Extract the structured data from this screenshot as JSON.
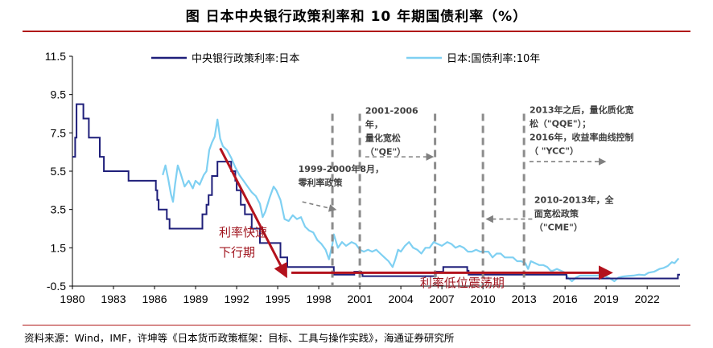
{
  "title": "图 日本中央银行政策利率和 10 年期国债利率（%）",
  "source": "资料来源：Wind，IMF，许坤等《日本货币政策框架：目标、工具与操作实践》，海通证券研究所",
  "chart_data": {
    "type": "line",
    "title": "图 日本中央银行政策利率和 10 年期国债利率（%）",
    "xlabel": "",
    "ylabel": "",
    "xlim": [
      1980,
      2024.4
    ],
    "ylim": [
      -0.5,
      11.5
    ],
    "yticks": [
      -0.5,
      1.5,
      3.5,
      5.5,
      7.5,
      9.5,
      11.5
    ],
    "xticks": [
      1980,
      1983,
      1986,
      1989,
      1992,
      1995,
      1998,
      2001,
      2004,
      2007,
      2010,
      2013,
      2016,
      2019,
      2022
    ],
    "grid": false,
    "legend_position": "top",
    "colors": {
      "policy": "#1f1f7a",
      "jgb": "#7fd0f2",
      "arrow": "#b3121d",
      "dash": "#808080"
    },
    "series": [
      {
        "name": "中央银行政策利率:日本",
        "style": "step",
        "points": [
          [
            1980.0,
            6.25
          ],
          [
            1980.2,
            7.25
          ],
          [
            1980.3,
            9.0
          ],
          [
            1980.7,
            9.0
          ],
          [
            1980.8,
            8.25
          ],
          [
            1981.1,
            8.25
          ],
          [
            1981.2,
            7.25
          ],
          [
            1981.9,
            7.25
          ],
          [
            1982.0,
            6.25
          ],
          [
            1982.2,
            6.25
          ],
          [
            1982.3,
            5.5
          ],
          [
            1983.7,
            5.5
          ],
          [
            1983.8,
            5.5
          ],
          [
            1984.0,
            5.5
          ],
          [
            1984.1,
            5.0
          ],
          [
            1986.0,
            5.0
          ],
          [
            1986.1,
            4.5
          ],
          [
            1986.2,
            4.0
          ],
          [
            1986.3,
            3.5
          ],
          [
            1986.8,
            3.5
          ],
          [
            1986.9,
            3.0
          ],
          [
            1987.1,
            2.5
          ],
          [
            1989.4,
            2.5
          ],
          [
            1989.5,
            3.25
          ],
          [
            1989.8,
            3.75
          ],
          [
            1989.95,
            4.25
          ],
          [
            1990.2,
            5.25
          ],
          [
            1990.6,
            6.0
          ],
          [
            1991.5,
            6.0
          ],
          [
            1991.6,
            5.5
          ],
          [
            1991.9,
            5.0
          ],
          [
            1992.0,
            4.5
          ],
          [
            1992.3,
            3.75
          ],
          [
            1992.6,
            3.25
          ],
          [
            1993.1,
            2.5
          ],
          [
            1993.7,
            1.75
          ],
          [
            1995.2,
            1.0
          ],
          [
            1995.7,
            0.5
          ],
          [
            1999.0,
            0.5
          ],
          [
            1999.1,
            0.1
          ],
          [
            2000.6,
            0.25
          ],
          [
            2001.1,
            0.15
          ],
          [
            2001.2,
            0.02
          ],
          [
            2006.5,
            0.02
          ],
          [
            2006.55,
            0.25
          ],
          [
            2007.1,
            0.5
          ],
          [
            2008.8,
            0.5
          ],
          [
            2008.85,
            0.3
          ],
          [
            2008.95,
            0.1
          ],
          [
            2015.95,
            0.1
          ],
          [
            2016.1,
            -0.1
          ],
          [
            2024.2,
            -0.1
          ],
          [
            2024.25,
            0.1
          ]
        ]
      },
      {
        "name": "日本:国债利率:10年",
        "style": "line",
        "points": [
          [
            1986.6,
            5.3
          ],
          [
            1986.8,
            5.8
          ],
          [
            1987.0,
            5.1
          ],
          [
            1987.2,
            4.3
          ],
          [
            1987.35,
            3.9
          ],
          [
            1987.5,
            4.8
          ],
          [
            1987.7,
            5.8
          ],
          [
            1987.9,
            5.4
          ],
          [
            1988.2,
            4.7
          ],
          [
            1988.5,
            5.0
          ],
          [
            1988.8,
            4.6
          ],
          [
            1989.0,
            5.0
          ],
          [
            1989.3,
            4.8
          ],
          [
            1989.6,
            5.3
          ],
          [
            1989.8,
            5.5
          ],
          [
            1990.0,
            6.6
          ],
          [
            1990.2,
            7.0
          ],
          [
            1990.4,
            7.3
          ],
          [
            1990.6,
            8.2
          ],
          [
            1990.8,
            7.2
          ],
          [
            1991.0,
            6.8
          ],
          [
            1991.3,
            6.6
          ],
          [
            1991.6,
            6.2
          ],
          [
            1991.9,
            5.7
          ],
          [
            1992.2,
            5.3
          ],
          [
            1992.5,
            5.0
          ],
          [
            1992.8,
            4.7
          ],
          [
            1993.1,
            4.4
          ],
          [
            1993.4,
            4.2
          ],
          [
            1993.7,
            3.8
          ],
          [
            1993.9,
            3.1
          ],
          [
            1994.1,
            3.4
          ],
          [
            1994.4,
            4.1
          ],
          [
            1994.7,
            4.7
          ],
          [
            1994.9,
            4.5
          ],
          [
            1995.2,
            4.0
          ],
          [
            1995.5,
            3.0
          ],
          [
            1995.8,
            2.9
          ],
          [
            1996.1,
            3.2
          ],
          [
            1996.4,
            3.0
          ],
          [
            1996.7,
            3.1
          ],
          [
            1997.0,
            2.6
          ],
          [
            1997.3,
            2.4
          ],
          [
            1997.6,
            2.3
          ],
          [
            1997.9,
            1.9
          ],
          [
            1998.2,
            1.7
          ],
          [
            1998.5,
            1.4
          ],
          [
            1998.75,
            0.9
          ],
          [
            1999.0,
            1.7
          ],
          [
            1999.1,
            2.2
          ],
          [
            1999.4,
            1.5
          ],
          [
            1999.7,
            1.8
          ],
          [
            2000.0,
            1.6
          ],
          [
            2000.4,
            1.8
          ],
          [
            2000.7,
            1.7
          ],
          [
            2001.0,
            1.4
          ],
          [
            2001.3,
            1.3
          ],
          [
            2001.6,
            1.4
          ],
          [
            2001.9,
            1.3
          ],
          [
            2002.2,
            1.4
          ],
          [
            2002.5,
            1.2
          ],
          [
            2002.8,
            1.0
          ],
          [
            2003.1,
            0.8
          ],
          [
            2003.4,
            0.5
          ],
          [
            2003.6,
            0.9
          ],
          [
            2003.8,
            1.4
          ],
          [
            2004.0,
            1.3
          ],
          [
            2004.3,
            1.6
          ],
          [
            2004.6,
            1.8
          ],
          [
            2004.9,
            1.5
          ],
          [
            2005.2,
            1.4
          ],
          [
            2005.5,
            1.2
          ],
          [
            2005.8,
            1.5
          ],
          [
            2006.1,
            1.5
          ],
          [
            2006.4,
            1.8
          ],
          [
            2006.7,
            1.7
          ],
          [
            2007.0,
            1.6
          ],
          [
            2007.4,
            1.8
          ],
          [
            2007.7,
            1.7
          ],
          [
            2008.0,
            1.5
          ],
          [
            2008.3,
            1.6
          ],
          [
            2008.6,
            1.5
          ],
          [
            2008.9,
            1.3
          ],
          [
            2009.2,
            1.3
          ],
          [
            2009.5,
            1.4
          ],
          [
            2009.8,
            1.3
          ],
          [
            2010.1,
            1.3
          ],
          [
            2010.4,
            1.3
          ],
          [
            2010.7,
            1.0
          ],
          [
            2011.0,
            1.2
          ],
          [
            2011.3,
            1.2
          ],
          [
            2011.6,
            1.0
          ],
          [
            2011.9,
            1.0
          ],
          [
            2012.2,
            1.0
          ],
          [
            2012.5,
            0.8
          ],
          [
            2012.8,
            0.8
          ],
          [
            2013.1,
            0.7
          ],
          [
            2013.3,
            0.4
          ],
          [
            2013.5,
            0.8
          ],
          [
            2013.8,
            0.7
          ],
          [
            2014.1,
            0.6
          ],
          [
            2014.4,
            0.6
          ],
          [
            2014.7,
            0.5
          ],
          [
            2014.95,
            0.3
          ],
          [
            2015.1,
            0.3
          ],
          [
            2015.4,
            0.4
          ],
          [
            2015.7,
            0.3
          ],
          [
            2016.0,
            0.2
          ],
          [
            2016.2,
            -0.05
          ],
          [
            2016.5,
            -0.25
          ],
          [
            2016.8,
            -0.05
          ],
          [
            2017.1,
            0.05
          ],
          [
            2017.5,
            0.05
          ],
          [
            2017.9,
            0.05
          ],
          [
            2018.3,
            0.05
          ],
          [
            2018.7,
            0.1
          ],
          [
            2019.0,
            0.0
          ],
          [
            2019.3,
            -0.1
          ],
          [
            2019.6,
            -0.25
          ],
          [
            2019.9,
            -0.05
          ],
          [
            2020.2,
            0.0
          ],
          [
            2020.6,
            0.03
          ],
          [
            2021.0,
            0.05
          ],
          [
            2021.4,
            0.1
          ],
          [
            2021.8,
            0.07
          ],
          [
            2022.1,
            0.2
          ],
          [
            2022.5,
            0.25
          ],
          [
            2022.9,
            0.4
          ],
          [
            2023.2,
            0.45
          ],
          [
            2023.5,
            0.55
          ],
          [
            2023.8,
            0.75
          ],
          [
            2024.0,
            0.7
          ],
          [
            2024.3,
            0.95
          ]
        ]
      }
    ],
    "annotations": [
      {
        "lines": [
          "1999-2000年8月，",
          "零利率政策"
        ],
        "x": 1996.5,
        "y": 5.45
      },
      {
        "lines": [
          "2001-2006",
          "年，",
          "量化宽松",
          "（\"QE\"）"
        ],
        "x": 2001.4,
        "y": 8.5
      },
      {
        "lines": [
          "2013年之后，量化质化宽",
          "松（\"QQE\"）；",
          "2016年，收益率曲线控制",
          "（ \"YCC\"）"
        ],
        "x": 2013.4,
        "y": 8.55
      },
      {
        "lines": [
          "2010-2013年，全",
          "面宽松政策",
          "（\"CME\"）"
        ],
        "x": 2013.75,
        "y": 3.85
      }
    ],
    "red_labels": [
      {
        "lines": [
          "利率快速",
          "下行期"
        ],
        "x": 1990.7,
        "y": 2.1
      },
      {
        "lines": [
          "利率低位震荡期"
        ],
        "x": 2005.4,
        "y": -0.55
      }
    ],
    "vertical_dashed_lines": [
      1999.0,
      2001.0,
      2006.5,
      2010.0,
      2013.0
    ],
    "arrows": [
      {
        "kind": "red",
        "from": [
          1990.8,
          6.7
        ],
        "to": [
          1995.6,
          0.05
        ]
      },
      {
        "kind": "red",
        "from": [
          1996.0,
          0.2
        ],
        "to": [
          2019.3,
          0.2
        ]
      },
      {
        "kind": "grey",
        "from": [
          1996.8,
          3.9
        ],
        "to": [
          1999.2,
          3.5
        ]
      },
      {
        "kind": "grey",
        "from": [
          2001.4,
          6.25
        ],
        "to": [
          2006.3,
          6.25
        ]
      },
      {
        "kind": "grey",
        "from": [
          2013.4,
          6.0
        ],
        "to": [
          2018.9,
          6.0
        ]
      },
      {
        "kind": "grey",
        "from": [
          2013.6,
          3.0
        ],
        "to": [
          2010.3,
          3.0
        ]
      }
    ]
  }
}
